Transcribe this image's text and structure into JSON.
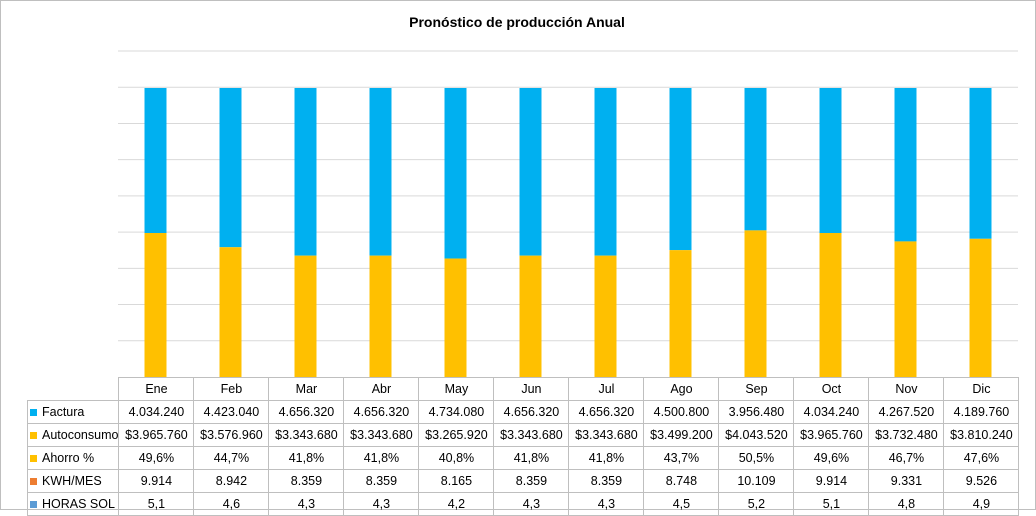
{
  "chart_data": {
    "type": "bar",
    "stacked": true,
    "title": "Pronóstico de producción Anual",
    "categories": [
      "Ene",
      "Feb",
      "Mar",
      "Abr",
      "May",
      "Jun",
      "Jul",
      "Ago",
      "Sep",
      "Oct",
      "Nov",
      "Dic"
    ],
    "ylim": [
      0,
      1
    ],
    "grid": true,
    "legend_placement": "data-table-left",
    "series": [
      {
        "name": "Factura",
        "color": "#00B0F0",
        "labels": [
          "4.034.240",
          "4.423.040",
          "4.656.320",
          "4.656.320",
          "4.734.080",
          "4.656.320",
          "4.656.320",
          "4.500.800",
          "3.956.480",
          "4.034.240",
          "4.267.520",
          "4.189.760"
        ]
      },
      {
        "name": "Autoconsumo",
        "color": "#FFC000",
        "labels": [
          "$3.965.760",
          "$3.576.960",
          "$3.343.680",
          "$3.343.680",
          "$3.265.920",
          "$3.343.680",
          "$3.343.680",
          "$3.499.200",
          "$4.043.520",
          "$3.965.760",
          "$3.732.480",
          "$3.810.240"
        ]
      },
      {
        "name": "Ahorro %",
        "color": "#FFC000",
        "values": [
          49.6,
          44.7,
          41.8,
          41.8,
          40.8,
          41.8,
          41.8,
          43.7,
          50.5,
          49.6,
          46.7,
          47.6
        ],
        "labels": [
          "49,6%",
          "44,7%",
          "41,8%",
          "41,8%",
          "40,8%",
          "41,8%",
          "41,8%",
          "43,7%",
          "50,5%",
          "49,6%",
          "46,7%",
          "47,6%"
        ]
      },
      {
        "name": "KWH/MES",
        "color": "#ED7D31",
        "labels": [
          "9.914",
          "8.942",
          "8.359",
          "8.359",
          "8.165",
          "8.359",
          "8.359",
          "8.748",
          "10.109",
          "9.914",
          "9.331",
          "9.526"
        ]
      },
      {
        "name": "HORAS SOL",
        "color": "#5B9BD5",
        "labels": [
          "5,1",
          "4,6",
          "4,3",
          "4,3",
          "4,2",
          "4,3",
          "4,3",
          "4,5",
          "5,2",
          "5,1",
          "4,8",
          "4,9"
        ]
      }
    ]
  }
}
